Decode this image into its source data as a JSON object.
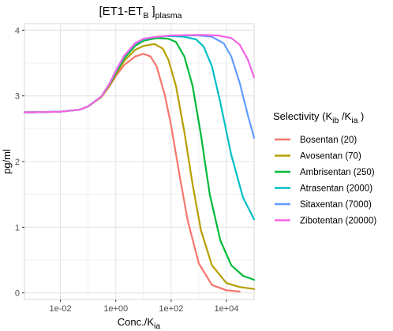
{
  "chart_data": {
    "type": "line",
    "title": {
      "main": "[ET1-ET",
      "sub1": "B",
      "mid": " ]",
      "sub2": "plasma"
    },
    "xlabel": {
      "main": "Conc./K",
      "sub": "ia"
    },
    "ylabel": "pg/ml",
    "x_scale": "log10",
    "xlim": [
      0.0005,
      100000
    ],
    "ylim": [
      -0.1,
      4.1
    ],
    "x_ticks": [
      {
        "value": 0.01,
        "label": "1e-02"
      },
      {
        "value": 1,
        "label": "1e+00"
      },
      {
        "value": 100,
        "label": "1e+02"
      },
      {
        "value": 10000,
        "label": "1e+04"
      }
    ],
    "y_ticks": [
      {
        "value": 0,
        "label": "0"
      },
      {
        "value": 1,
        "label": "1"
      },
      {
        "value": 2,
        "label": "2"
      },
      {
        "value": 3,
        "label": "3"
      },
      {
        "value": 4,
        "label": "4"
      }
    ],
    "grid": true,
    "background": "#ffffff",
    "grid_color": "#e5e5e5",
    "legend": {
      "placement": "right",
      "title": {
        "prefix": "Selectivity (K",
        "sub1": "ib",
        "mid": " /K",
        "sub2": "ia",
        "suffix": " )"
      }
    },
    "series": [
      {
        "name": "Bosentan (20)",
        "color": "#F8766D",
        "points": [
          [
            0.0005,
            2.75
          ],
          [
            0.001,
            2.75
          ],
          [
            0.01,
            2.76
          ],
          [
            0.05,
            2.79
          ],
          [
            0.1,
            2.84
          ],
          [
            0.3,
            2.98
          ],
          [
            0.6,
            3.15
          ],
          [
            1,
            3.3
          ],
          [
            2,
            3.47
          ],
          [
            5,
            3.6
          ],
          [
            10,
            3.64
          ],
          [
            18,
            3.6
          ],
          [
            30,
            3.45
          ],
          [
            60,
            3.0
          ],
          [
            100,
            2.55
          ],
          [
            200,
            1.8
          ],
          [
            400,
            1.1
          ],
          [
            1000,
            0.45
          ],
          [
            3000,
            0.12
          ],
          [
            10000,
            0.04
          ],
          [
            30000,
            0.02
          ]
        ]
      },
      {
        "name": "Avosentan (70)",
        "color": "#B79F00",
        "points": [
          [
            0.0005,
            2.75
          ],
          [
            0.001,
            2.75
          ],
          [
            0.01,
            2.76
          ],
          [
            0.05,
            2.79
          ],
          [
            0.1,
            2.84
          ],
          [
            0.3,
            2.98
          ],
          [
            0.6,
            3.16
          ],
          [
            1,
            3.33
          ],
          [
            2,
            3.53
          ],
          [
            5,
            3.7
          ],
          [
            10,
            3.76
          ],
          [
            25,
            3.79
          ],
          [
            50,
            3.72
          ],
          [
            80,
            3.55
          ],
          [
            150,
            3.15
          ],
          [
            300,
            2.45
          ],
          [
            600,
            1.65
          ],
          [
            1200,
            0.95
          ],
          [
            3000,
            0.42
          ],
          [
            10000,
            0.15
          ],
          [
            30000,
            0.09
          ],
          [
            100000,
            0.06
          ]
        ]
      },
      {
        "name": "Ambrisentan (250)",
        "color": "#00BA38",
        "points": [
          [
            0.0005,
            2.75
          ],
          [
            0.001,
            2.75
          ],
          [
            0.01,
            2.76
          ],
          [
            0.05,
            2.79
          ],
          [
            0.1,
            2.84
          ],
          [
            0.3,
            2.99
          ],
          [
            0.6,
            3.18
          ],
          [
            1,
            3.35
          ],
          [
            2,
            3.57
          ],
          [
            5,
            3.76
          ],
          [
            10,
            3.84
          ],
          [
            30,
            3.88
          ],
          [
            80,
            3.87
          ],
          [
            150,
            3.82
          ],
          [
            300,
            3.6
          ],
          [
            600,
            3.15
          ],
          [
            1200,
            2.4
          ],
          [
            2500,
            1.5
          ],
          [
            6000,
            0.8
          ],
          [
            15000,
            0.42
          ],
          [
            40000,
            0.26
          ],
          [
            100000,
            0.2
          ]
        ]
      },
      {
        "name": "Atrasentan (2000)",
        "color": "#00BFC4",
        "points": [
          [
            0.0005,
            2.75
          ],
          [
            0.001,
            2.75
          ],
          [
            0.01,
            2.76
          ],
          [
            0.05,
            2.79
          ],
          [
            0.1,
            2.84
          ],
          [
            0.3,
            2.99
          ],
          [
            0.6,
            3.19
          ],
          [
            1,
            3.37
          ],
          [
            2,
            3.6
          ],
          [
            5,
            3.79
          ],
          [
            10,
            3.86
          ],
          [
            30,
            3.9
          ],
          [
            100,
            3.91
          ],
          [
            300,
            3.9
          ],
          [
            800,
            3.86
          ],
          [
            1500,
            3.75
          ],
          [
            3000,
            3.45
          ],
          [
            6000,
            2.9
          ],
          [
            15000,
            2.1
          ],
          [
            40000,
            1.45
          ],
          [
            100000,
            1.12
          ]
        ]
      },
      {
        "name": "Sitaxentan (7000)",
        "color": "#619CFF",
        "points": [
          [
            0.0005,
            2.75
          ],
          [
            0.001,
            2.75
          ],
          [
            0.01,
            2.76
          ],
          [
            0.05,
            2.79
          ],
          [
            0.1,
            2.84
          ],
          [
            0.3,
            2.99
          ],
          [
            0.6,
            3.19
          ],
          [
            1,
            3.38
          ],
          [
            2,
            3.61
          ],
          [
            5,
            3.8
          ],
          [
            10,
            3.87
          ],
          [
            30,
            3.9
          ],
          [
            100,
            3.92
          ],
          [
            1000,
            3.92
          ],
          [
            3000,
            3.9
          ],
          [
            8000,
            3.8
          ],
          [
            15000,
            3.6
          ],
          [
            30000,
            3.2
          ],
          [
            60000,
            2.7
          ],
          [
            100000,
            2.36
          ]
        ]
      },
      {
        "name": "Zibotentan (20000)",
        "color": "#F564E3",
        "points": [
          [
            0.0005,
            2.75
          ],
          [
            0.001,
            2.75
          ],
          [
            0.01,
            2.76
          ],
          [
            0.05,
            2.79
          ],
          [
            0.1,
            2.84
          ],
          [
            0.3,
            2.99
          ],
          [
            0.6,
            3.19
          ],
          [
            1,
            3.38
          ],
          [
            2,
            3.61
          ],
          [
            5,
            3.8
          ],
          [
            10,
            3.87
          ],
          [
            30,
            3.9
          ],
          [
            100,
            3.92
          ],
          [
            1000,
            3.93
          ],
          [
            5000,
            3.92
          ],
          [
            15000,
            3.88
          ],
          [
            30000,
            3.78
          ],
          [
            60000,
            3.55
          ],
          [
            100000,
            3.28
          ]
        ]
      }
    ]
  }
}
